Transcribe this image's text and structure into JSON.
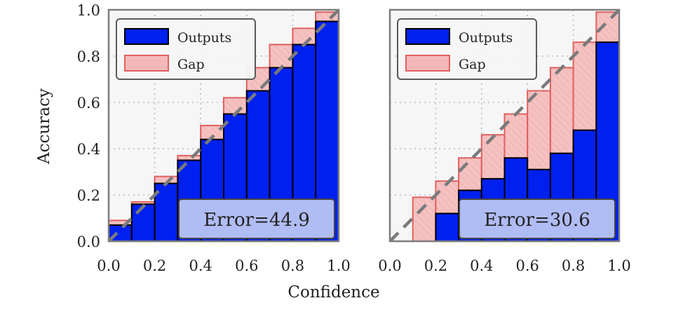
{
  "xlabel": "Confidence",
  "ylabel": "Accuracy",
  "colors": {
    "outputs_fill": "#0020f0",
    "outputs_edge": "#000000",
    "gap_fill": "#f5b8b8",
    "gap_edge": "#e06060",
    "diagonal": "#7a7a7a",
    "plot_bg": "#f6f6f6",
    "grid": "#b8b8b8",
    "error_box_fill": "#b0bcf4",
    "error_box_edge": "#444444"
  },
  "chart_data": [
    {
      "type": "bar",
      "title": "",
      "xlabel": "Confidence",
      "ylabel": "Accuracy",
      "xlim": [
        0,
        1
      ],
      "ylim": [
        0,
        1
      ],
      "grid": true,
      "legend_position": "top-left",
      "bin_edges": [
        0.0,
        0.1,
        0.2,
        0.3,
        0.4,
        0.5,
        0.6,
        0.7,
        0.8,
        0.9,
        1.0
      ],
      "x_ticks": [
        "0.0",
        "0.2",
        "0.4",
        "0.6",
        "0.8",
        "1.0"
      ],
      "y_ticks": [
        "0.0",
        "0.2",
        "0.4",
        "0.6",
        "0.8",
        "1.0"
      ],
      "series": [
        {
          "name": "Outputs",
          "values": [
            0.07,
            0.16,
            0.25,
            0.35,
            0.44,
            0.55,
            0.65,
            0.75,
            0.85,
            0.95
          ]
        },
        {
          "name": "Gap",
          "values": [
            0.09,
            0.17,
            0.28,
            0.37,
            0.5,
            0.62,
            0.75,
            0.85,
            0.92,
            0.99
          ]
        }
      ],
      "annotation": "Error=44.9"
    },
    {
      "type": "bar",
      "title": "",
      "xlabel": "Confidence",
      "ylabel": "",
      "xlim": [
        0,
        1
      ],
      "ylim": [
        0,
        1
      ],
      "grid": true,
      "legend_position": "top-left",
      "bin_edges": [
        0.0,
        0.1,
        0.2,
        0.3,
        0.4,
        0.5,
        0.6,
        0.7,
        0.8,
        0.9,
        1.0
      ],
      "x_ticks": [
        "0.0",
        "0.2",
        "0.4",
        "0.6",
        "0.8",
        "1.0"
      ],
      "y_ticks": [],
      "series": [
        {
          "name": "Outputs",
          "values": [
            0.0,
            0.0,
            0.12,
            0.22,
            0.27,
            0.36,
            0.31,
            0.38,
            0.48,
            0.86
          ]
        },
        {
          "name": "Gap",
          "values": [
            0.0,
            0.19,
            0.26,
            0.36,
            0.46,
            0.55,
            0.65,
            0.75,
            0.86,
            0.99
          ]
        }
      ],
      "annotation": "Error=30.6"
    }
  ]
}
